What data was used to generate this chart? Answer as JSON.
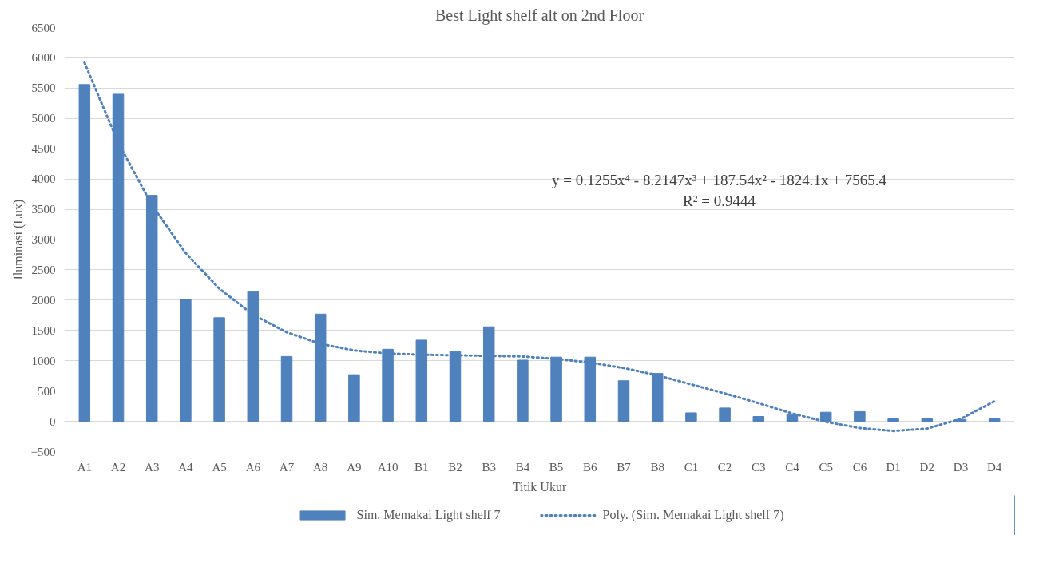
{
  "chart_data": {
    "type": "bar",
    "title": "Best Light shelf alt on 2nd Floor",
    "xlabel": "Titik Ukur",
    "ylabel": "Iluminasi (Lux)",
    "categories": [
      "A1",
      "A2",
      "A3",
      "A4",
      "A5",
      "A6",
      "A7",
      "A8",
      "A9",
      "A10",
      "B1",
      "B2",
      "B3",
      "B4",
      "B5",
      "B6",
      "B7",
      "B8",
      "C1",
      "C2",
      "C3",
      "C4",
      "C5",
      "C6",
      "D1",
      "D2",
      "D3",
      "D4"
    ],
    "series": [
      {
        "name": "Sim. Memakai Light shelf 7",
        "color": "#4f81bd",
        "values": [
          5560,
          5400,
          3730,
          2010,
          1710,
          2140,
          1070,
          1770,
          770,
          1190,
          1340,
          1150,
          1560,
          1010,
          1060,
          1060,
          670,
          790,
          140,
          220,
          80,
          110,
          150,
          160,
          40,
          40,
          30,
          40
        ]
      },
      {
        "name": "Poly. (Sim. Memakai Light shelf 7)",
        "type": "line",
        "line_style": "dotted",
        "color": "#4f81bd",
        "values": [
          5920,
          4600,
          3570,
          2780,
          2190,
          1760,
          1470,
          1280,
          1170,
          1120,
          1100,
          1090,
          1080,
          1070,
          1030,
          970,
          880,
          760,
          610,
          460,
          300,
          130,
          -10,
          -110,
          -160,
          -120,
          40,
          330
        ]
      }
    ],
    "ylim": [
      -500,
      6500
    ],
    "yticks": [
      -500,
      0,
      500,
      1000,
      1500,
      2000,
      2500,
      3000,
      3500,
      4000,
      4500,
      5000,
      5500,
      6000,
      6500
    ],
    "grid": "y",
    "legend": "bottom",
    "annotations": [
      "y = 0.1255x⁴ - 8.2147x³ + 187.54x² - 1824.1x + 7565.4",
      "R² = 0.9444"
    ]
  }
}
